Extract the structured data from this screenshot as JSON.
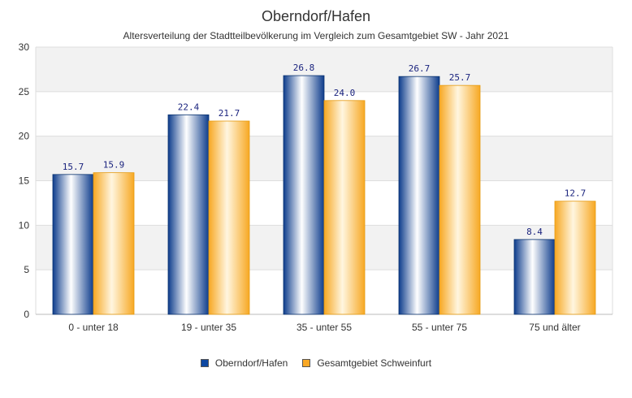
{
  "colors": {
    "series_0": "#0d47a1",
    "series_1": "#f9a825",
    "band": "#f2f2f2",
    "grid": "#dddddd",
    "label_text": "#1a237e"
  },
  "chart_data": {
    "type": "bar",
    "title": "Oberndorf/Hafen",
    "subtitle": "Altersverteilung der Stadtteilbevölkerung im Vergleich zum Gesamtgebiet SW - Jahr 2021",
    "categories": [
      "0 - unter 18",
      "19 - unter 35",
      "35 - unter 55",
      "55 - unter 75",
      "75 und älter"
    ],
    "series": [
      {
        "name": "Oberndorf/Hafen",
        "values": [
          15.7,
          22.4,
          26.8,
          26.7,
          8.4
        ],
        "labels": [
          "15.7",
          "22.4",
          "26.8",
          "26.7",
          "8.4"
        ]
      },
      {
        "name": "Gesamtgebiet Schweinfurt",
        "values": [
          15.9,
          21.7,
          24.0,
          25.7,
          12.7
        ],
        "labels": [
          "15.9",
          "21.7",
          "24.0",
          "25.7",
          "12.7"
        ]
      }
    ],
    "ylim": [
      0,
      30
    ],
    "yticks": [
      "0",
      "5",
      "10",
      "15",
      "20",
      "25",
      "30"
    ],
    "grid": true,
    "legend_position": "bottom-center"
  }
}
